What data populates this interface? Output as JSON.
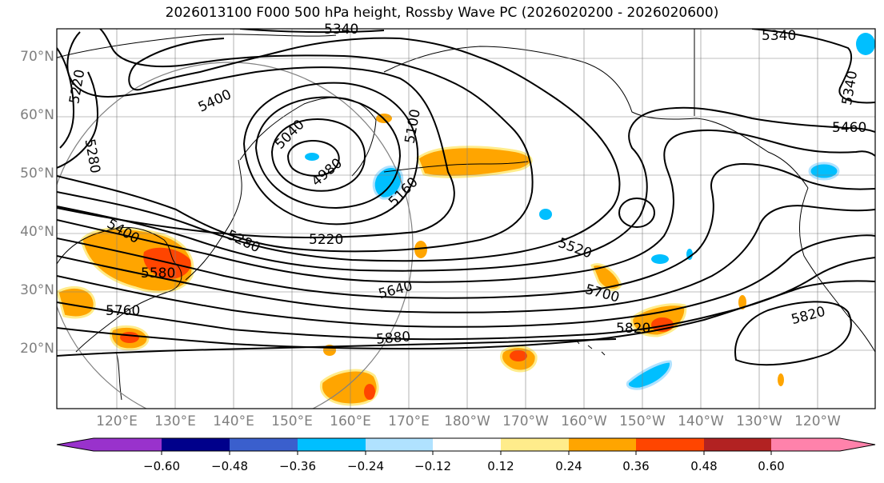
{
  "title": "2026013100 F000 500 hPa height, Rossby Wave PC (2026020200 - 2026020600)",
  "lat_labels": [
    "70°N",
    "60°N",
    "50°N",
    "40°N",
    "30°N",
    "20°N"
  ],
  "lon_labels": [
    "120°E",
    "130°E",
    "140°E",
    "150°E",
    "160°E",
    "170°E",
    "180°W",
    "170°W",
    "160°W",
    "150°W",
    "140°W",
    "130°W",
    "120°W"
  ],
  "contour_labels": [
    "5340",
    "5340",
    "5340",
    "5220",
    "5280",
    "5400",
    "5040",
    "4980",
    "5100",
    "5160",
    "5460",
    "5220",
    "5280",
    "5400",
    "5580",
    "5520",
    "5640",
    "5700",
    "5760",
    "5820",
    "5880",
    "5820"
  ],
  "colorbar": {
    "ticks": [
      "−0.60",
      "−0.48",
      "−0.36",
      "−0.24",
      "−0.12",
      "0.12",
      "0.24",
      "0.36",
      "0.48",
      "0.60"
    ],
    "colors": [
      "#9932cc",
      "#00008b",
      "#3a5fcd",
      "#00bfff",
      "#b0e2ff",
      "#ffffff",
      "#ffec8b",
      "#ffa500",
      "#ff4500",
      "#b22222",
      "#ff82ab",
      "#ff82ab"
    ]
  }
}
